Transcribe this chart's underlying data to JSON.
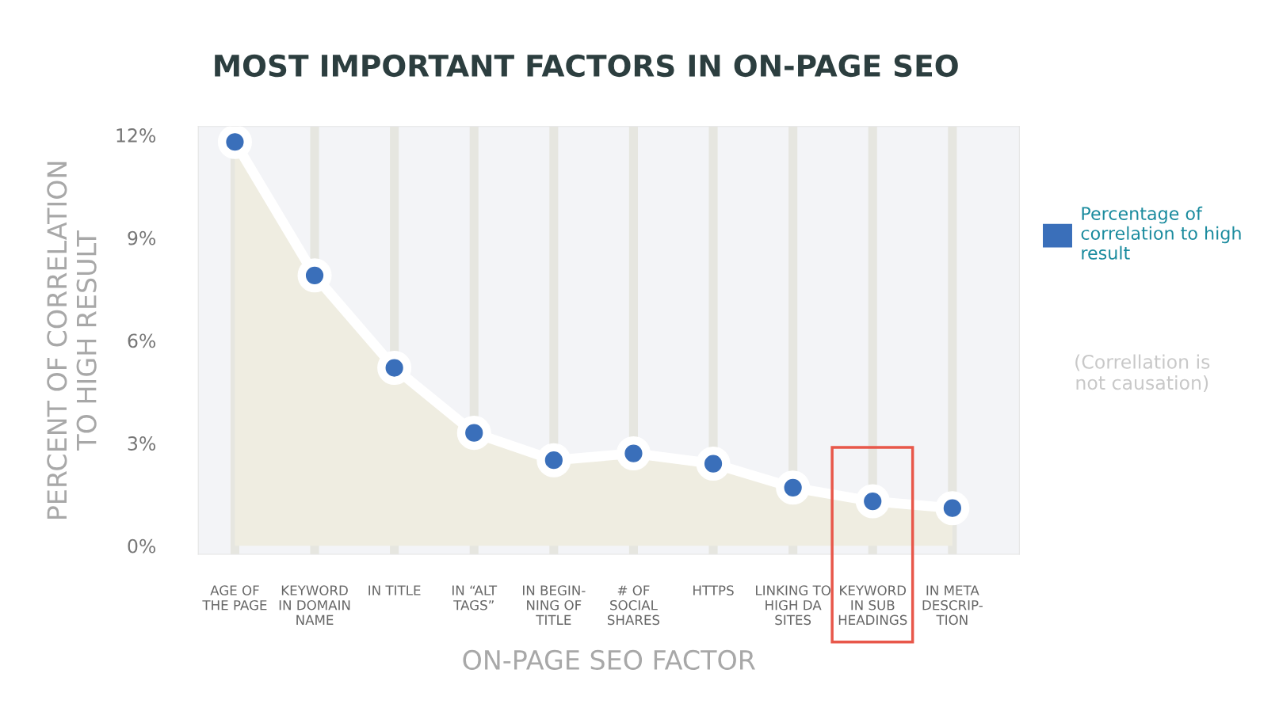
{
  "chart_data": {
    "type": "area",
    "title": "MOST IMPORTANT FACTORS IN ON-PAGE SEO",
    "xlabel": "ON-PAGE SEO FACTOR",
    "ylabel": "PERCENT OF CORRELATION\nTO HIGH RESULT",
    "categories": [
      "AGE OF\nTHE PAGE",
      "KEYWORD\nIN DOMAIN\nNAME",
      "IN TITLE",
      "IN “ALT\nTAGS”",
      "IN BEGIN-\nNING OF\nTITLE",
      "# OF\nSOCIAL\nSHARES",
      "HTTPS",
      "LINKING TO\nHIGH DA\nSITES",
      "KEYWORD\nIN SUB\nHEADINGS",
      "IN META\nDESCRIP-\nTION"
    ],
    "series": [
      {
        "name": "Percentage of correlation to high result",
        "color": "#3a6fba",
        "values": [
          11.8,
          7.9,
          5.2,
          3.3,
          2.5,
          2.7,
          2.4,
          1.7,
          1.3,
          1.1
        ]
      }
    ],
    "ylim": [
      -0.25,
      12.25
    ],
    "yticks": [
      {
        "value": 0,
        "label": "0%"
      },
      {
        "value": 3,
        "label": "3%"
      },
      {
        "value": 6,
        "label": "6%"
      },
      {
        "value": 9,
        "label": "9%"
      },
      {
        "value": 12,
        "label": "12%"
      }
    ],
    "grid": "x",
    "legend": "right",
    "marker": "circle",
    "annotations": [
      "(Correllation is\nnot causation)"
    ]
  }
}
